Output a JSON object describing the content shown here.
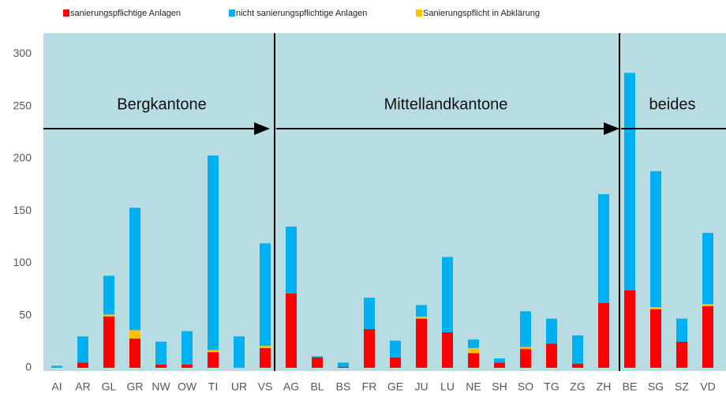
{
  "chart_data": {
    "type": "stacked-bar",
    "categories": [
      "AI",
      "AR",
      "GL",
      "GR",
      "NW",
      "OW",
      "TI",
      "UR",
      "VS",
      "AG",
      "BL",
      "BS",
      "FR",
      "GE",
      "JU",
      "LU",
      "NE",
      "SH",
      "SO",
      "TG",
      "ZG",
      "ZH",
      "BE",
      "SG",
      "SZ",
      "VD"
    ],
    "series": [
      {
        "name": "sanierungspflichtige Anlagen",
        "color": "#ff0000",
        "values": [
          0,
          5,
          49,
          28,
          3,
          3,
          15,
          0,
          19,
          71,
          10,
          1,
          37,
          10,
          47,
          34,
          14,
          5,
          18,
          23,
          4,
          62,
          74,
          56,
          25,
          59
        ]
      },
      {
        "name": "nicht sanierungspflichtige Anlagen",
        "color": "#00b0f0",
        "values": [
          2,
          25,
          37,
          117,
          22,
          32,
          186,
          30,
          98,
          64,
          1,
          4,
          30,
          16,
          11,
          72,
          8,
          4,
          34,
          24,
          27,
          104,
          208,
          130,
          22,
          68
        ]
      },
      {
        "name": "Sanierungspflicht in Abklärung",
        "color": "#ffc000",
        "values": [
          0,
          0,
          2,
          8,
          0,
          0,
          2,
          0,
          2,
          0,
          0,
          0,
          0,
          0,
          2,
          0,
          5,
          0,
          2,
          0,
          0,
          0,
          0,
          2,
          0,
          2
        ]
      }
    ],
    "annotations": [
      "Bergkantone",
      "Mittellandkantone",
      "beides"
    ],
    "ylim": [
      0,
      320
    ],
    "yticks": [
      0,
      50,
      100,
      150,
      200,
      250,
      300
    ],
    "grid": false
  }
}
